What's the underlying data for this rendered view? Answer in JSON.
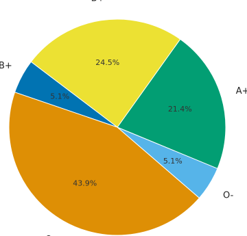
{
  "chart_data": {
    "type": "pie",
    "title": "",
    "categories": [
      "A+",
      "B+",
      "AB+",
      "O+",
      "O-"
    ],
    "values": [
      21.4,
      24.5,
      5.1,
      43.9,
      5.1
    ],
    "value_labels": [
      "21.4%",
      "24.5%",
      "5.1%",
      "43.9%",
      "5.1%"
    ],
    "colors": [
      "#029e73",
      "#ece133",
      "#0173b2",
      "#de8f05",
      "#56b4e9"
    ],
    "start_angle_deg": -22.5,
    "direction": "counterclockwise",
    "legend": "none"
  }
}
